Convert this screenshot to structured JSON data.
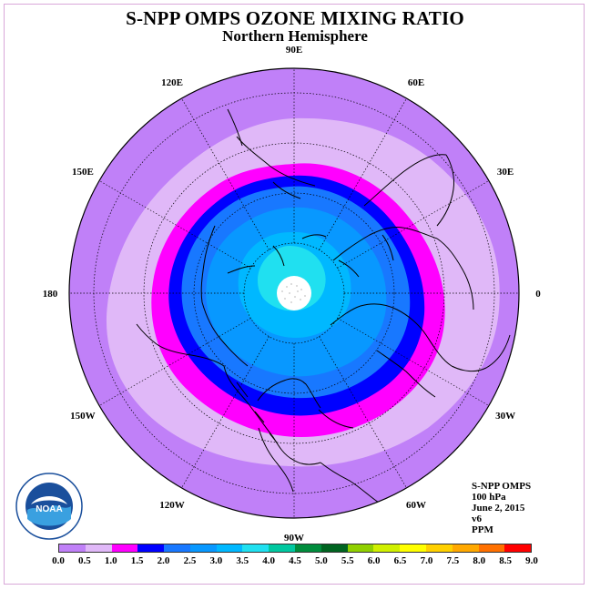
{
  "title": "S-NPP OMPS OZONE MIXING RATIO",
  "subtitle": "Northern Hemisphere",
  "longitude_labels": [
    {
      "text": "90E",
      "lon": 90
    },
    {
      "text": "60E",
      "lon": 60
    },
    {
      "text": "30E",
      "lon": 30
    },
    {
      "text": "0",
      "lon": 0
    },
    {
      "text": "30W",
      "lon": -30
    },
    {
      "text": "60W",
      "lon": -60
    },
    {
      "text": "90W",
      "lon": -90
    },
    {
      "text": "120W",
      "lon": -120
    },
    {
      "text": "150W",
      "lon": -150
    },
    {
      "text": "180",
      "lon": 180
    },
    {
      "text": "150E",
      "lon": 150
    },
    {
      "text": "120E",
      "lon": 120
    }
  ],
  "info": {
    "instrument": "S-NPP OMPS",
    "level": "100 hPa",
    "date": "June 2, 2015",
    "version": "v6",
    "units": "PPM"
  },
  "logo": {
    "text": "NOAA",
    "icon": "noaa-logo-icon"
  },
  "colorbar": {
    "ticks": [
      "0.0",
      "0.5",
      "1.0",
      "1.5",
      "2.0",
      "2.5",
      "3.0",
      "3.5",
      "4.0",
      "4.5",
      "5.0",
      "5.5",
      "6.0",
      "6.5",
      "7.0",
      "7.5",
      "8.0",
      "8.5",
      "9.0"
    ],
    "colors": [
      "#c080f8",
      "#e0b8f8",
      "#ff00ff",
      "#0000ff",
      "#1878ff",
      "#0898ff",
      "#00b8ff",
      "#20e0f0",
      "#00c8a0",
      "#008c3c",
      "#006420",
      "#90d000",
      "#d0f000",
      "#ffff00",
      "#ffd000",
      "#ffa800",
      "#ff7000",
      "#ff0000",
      "#8c5a3c"
    ]
  },
  "map_data": {
    "projection": "north-polar-stereographic",
    "field_levels_ppm": [
      0.0,
      0.5,
      1.0,
      1.5,
      2.0,
      2.5,
      3.0
    ],
    "missing_data_near_pole": true,
    "meridian_spacing_deg": 30,
    "parallel_spacing_deg": 15
  }
}
